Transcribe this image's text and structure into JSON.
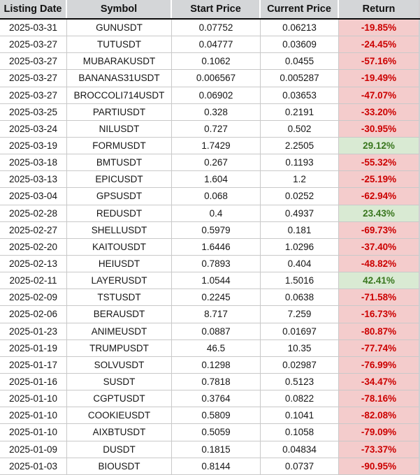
{
  "colors": {
    "header_bg": "#d4d6d8",
    "negative_text": "#cc0000",
    "negative_bg": "#f4cccc",
    "positive_text": "#38761d",
    "positive_bg": "#d9ead3"
  },
  "table": {
    "columns": [
      {
        "key": "date",
        "label": "Listing Date"
      },
      {
        "key": "symbol",
        "label": "Symbol"
      },
      {
        "key": "start",
        "label": "Start Price"
      },
      {
        "key": "current",
        "label": "Current Price"
      },
      {
        "key": "return",
        "label": "Return"
      }
    ],
    "rows": [
      {
        "date": "2025-03-31",
        "symbol": "GUNUSDT",
        "start": "0.07752",
        "current": "0.06213",
        "return": "-19.85%"
      },
      {
        "date": "2025-03-27",
        "symbol": "TUTUSDT",
        "start": "0.04777",
        "current": "0.03609",
        "return": "-24.45%"
      },
      {
        "date": "2025-03-27",
        "symbol": "MUBARAKUSDT",
        "start": "0.1062",
        "current": "0.0455",
        "return": "-57.16%"
      },
      {
        "date": "2025-03-27",
        "symbol": "BANANAS31USDT",
        "start": "0.006567",
        "current": "0.005287",
        "return": "-19.49%"
      },
      {
        "date": "2025-03-27",
        "symbol": "BROCCOLI714USDT",
        "start": "0.06902",
        "current": "0.03653",
        "return": "-47.07%"
      },
      {
        "date": "2025-03-25",
        "symbol": "PARTIUSDT",
        "start": "0.328",
        "current": "0.2191",
        "return": "-33.20%"
      },
      {
        "date": "2025-03-24",
        "symbol": "NILUSDT",
        "start": "0.727",
        "current": "0.502",
        "return": "-30.95%"
      },
      {
        "date": "2025-03-19",
        "symbol": "FORMUSDT",
        "start": "1.7429",
        "current": "2.2505",
        "return": "29.12%"
      },
      {
        "date": "2025-03-18",
        "symbol": "BMTUSDT",
        "start": "0.267",
        "current": "0.1193",
        "return": "-55.32%"
      },
      {
        "date": "2025-03-13",
        "symbol": "EPICUSDT",
        "start": "1.604",
        "current": "1.2",
        "return": "-25.19%"
      },
      {
        "date": "2025-03-04",
        "symbol": "GPSUSDT",
        "start": "0.068",
        "current": "0.0252",
        "return": "-62.94%"
      },
      {
        "date": "2025-02-28",
        "symbol": "REDUSDT",
        "start": "0.4",
        "current": "0.4937",
        "return": "23.43%"
      },
      {
        "date": "2025-02-27",
        "symbol": "SHELLUSDT",
        "start": "0.5979",
        "current": "0.181",
        "return": "-69.73%"
      },
      {
        "date": "2025-02-20",
        "symbol": "KAITOUSDT",
        "start": "1.6446",
        "current": "1.0296",
        "return": "-37.40%"
      },
      {
        "date": "2025-02-13",
        "symbol": "HEIUSDT",
        "start": "0.7893",
        "current": "0.404",
        "return": "-48.82%"
      },
      {
        "date": "2025-02-11",
        "symbol": "LAYERUSDT",
        "start": "1.0544",
        "current": "1.5016",
        "return": "42.41%"
      },
      {
        "date": "2025-02-09",
        "symbol": "TSTUSDT",
        "start": "0.2245",
        "current": "0.0638",
        "return": "-71.58%"
      },
      {
        "date": "2025-02-06",
        "symbol": "BERAUSDT",
        "start": "8.717",
        "current": "7.259",
        "return": "-16.73%"
      },
      {
        "date": "2025-01-23",
        "symbol": "ANIMEUSDT",
        "start": "0.0887",
        "current": "0.01697",
        "return": "-80.87%"
      },
      {
        "date": "2025-01-19",
        "symbol": "TRUMPUSDT",
        "start": "46.5",
        "current": "10.35",
        "return": "-77.74%"
      },
      {
        "date": "2025-01-17",
        "symbol": "SOLVUSDT",
        "start": "0.1298",
        "current": "0.02987",
        "return": "-76.99%"
      },
      {
        "date": "2025-01-16",
        "symbol": "SUSDT",
        "start": "0.7818",
        "current": "0.5123",
        "return": "-34.47%"
      },
      {
        "date": "2025-01-10",
        "symbol": "CGPTUSDT",
        "start": "0.3764",
        "current": "0.0822",
        "return": "-78.16%"
      },
      {
        "date": "2025-01-10",
        "symbol": "COOKIEUSDT",
        "start": "0.5809",
        "current": "0.1041",
        "return": "-82.08%"
      },
      {
        "date": "2025-01-10",
        "symbol": "AIXBTUSDT",
        "start": "0.5059",
        "current": "0.1058",
        "return": "-79.09%"
      },
      {
        "date": "2025-01-09",
        "symbol": "DUSDT",
        "start": "0.1815",
        "current": "0.04834",
        "return": "-73.37%"
      },
      {
        "date": "2025-01-03",
        "symbol": "BIOUSDT",
        "start": "0.8144",
        "current": "0.0737",
        "return": "-90.95%"
      }
    ]
  }
}
